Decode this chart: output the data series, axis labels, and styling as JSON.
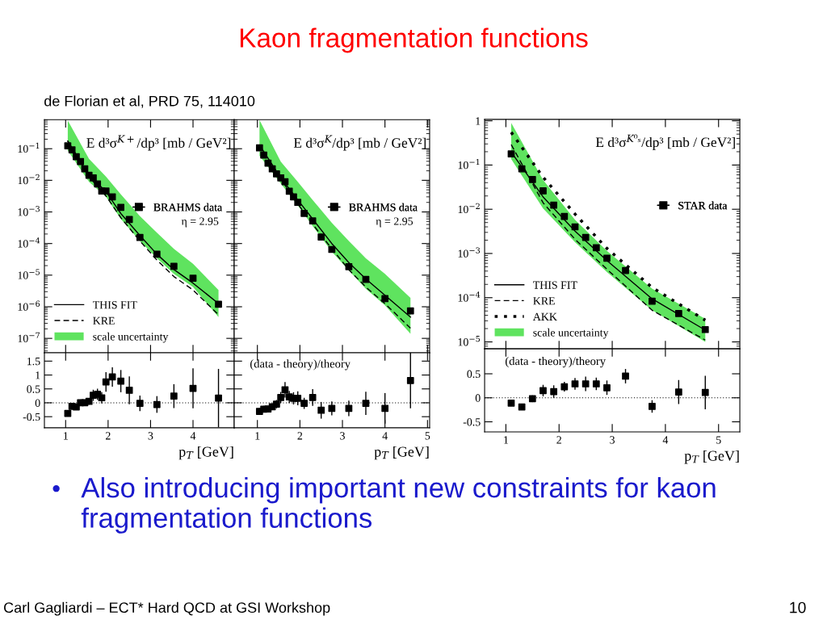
{
  "chart_data": [
    {
      "type": "other",
      "title": "Kaon fragmentation functions",
      "subtitle": "de Florian et al, PRD 75, 114010",
      "annotations": [
        "Also introducing important new constraints for kaon fragmentation functions",
        "Carl Gagliardi – ECT* Hard QCD at GSI Workshop",
        "10"
      ]
    },
    {
      "type": "line",
      "log": "y",
      "xlim": [
        0.5,
        4.97
      ],
      "xticks": [
        1,
        2,
        3,
        4
      ],
      "ylim": [
        3.5e-08,
        0.83
      ],
      "yticks": [
        {
          "value": 0.1,
          "label": "10$^{−1}$"
        },
        {
          "value": 0.01,
          "label": "10$^{−2}$"
        },
        {
          "value": 0.001,
          "label": "10$^{−3}$"
        },
        {
          "value": 0.0001,
          "label": "10$^{−4}$"
        },
        {
          "value": 1e-05,
          "label": "10$^{−5}$"
        },
        {
          "value": 1e-06,
          "label": "10$^{−6}$"
        },
        {
          "value": 1e-07,
          "label": "10$^{−7}$"
        }
      ],
      "tick_labels": "y",
      "legend": "bottom left",
      "annotations": [
        "E d³σ$^{K+}$/dp³ [mb / GeV²]",
        "η = 2.95",
        "scale uncertainty"
      ],
      "series": [
        {
          "name": "THIS FIT",
          "type": "line",
          "line_style": "solid",
          "color": "#000000",
          "x": [
            1.05,
            1.55,
            1.95,
            2.3,
            2.75,
            3.15,
            3.55,
            4.0,
            4.6
          ],
          "values": [
            0.175,
            0.0145,
            0.0044,
            0.00089,
            0.00018,
            4.6e-05,
            1.5e-05,
            5.6e-06,
            1.26e-06
          ],
          "lower": [
            0.087,
            0.0089,
            0.003,
            0.0006,
            0.00012,
            3.4e-05,
            1.1e-05,
            4.2e-06,
            4.7e-07
          ],
          "upper": [
            0.78,
            0.048,
            0.0132,
            0.0036,
            0.00074,
            0.00022,
            6.8e-05,
            2.3e-05,
            3.4e-06
          ]
        },
        {
          "name": "KRE",
          "type": "line",
          "line_style": "dashed",
          "color": "#000000",
          "x": [
            1.05,
            1.55,
            1.95,
            2.3,
            2.75,
            3.15,
            3.55,
            4.0,
            4.6
          ],
          "values": [
            0.175,
            0.013,
            0.0032,
            0.00066,
            0.00012,
            3e-05,
            9e-06,
            3.4e-06,
            5.6e-07
          ]
        },
        {
          "name": "BRAHMS data",
          "type": "scatter",
          "marker": "square",
          "color": "#000000",
          "x": [
            1.05,
            1.15,
            1.25,
            1.35,
            1.45,
            1.55,
            1.65,
            1.75,
            1.85,
            1.95,
            2.1,
            2.3,
            2.5,
            2.75,
            3.15,
            3.55,
            4.0,
            4.6
          ],
          "values": [
            0.124,
            0.092,
            0.056,
            0.039,
            0.023,
            0.0145,
            0.012,
            0.0077,
            0.0046,
            0.0046,
            0.003,
            0.0014,
            0.00058,
            0.000155,
            4.6e-05,
            1.9e-05,
            8e-06,
            1.2e-06
          ]
        }
      ]
    },
    {
      "type": "line",
      "log": "y",
      "xlim": [
        0.455,
        5.05
      ],
      "xticks": [
        1,
        2,
        3,
        4,
        5
      ],
      "ylim": [
        3.5e-08,
        0.83
      ],
      "yticks": [
        0.1,
        0.01,
        0.001,
        0.0001,
        1e-05,
        1e-06,
        1e-07
      ],
      "tick_labels": false,
      "legend": "right",
      "annotations": [
        "E d³σ$^{K}$/dp³ [mb / GeV²]",
        "η = 2.95"
      ],
      "series": [
        {
          "type": "line",
          "line_style": "solid",
          "color": "#000000",
          "x": [
            1.05,
            1.55,
            1.95,
            2.3,
            2.75,
            3.15,
            3.55,
            4.0,
            4.6
          ],
          "values": [
            0.13,
            0.012,
            0.0024,
            0.0006,
            0.0001,
            2.5e-05,
            7.6e-06,
            2.3e-06,
            4.7e-07
          ],
          "lower": [
            0.06,
            0.008,
            0.0016,
            0.00036,
            5.5e-05,
            1.4e-05,
            3.7e-06,
            1.1e-06,
            1.4e-07
          ],
          "upper": [
            0.8,
            0.039,
            0.0089,
            0.0024,
            0.00045,
            0.00012,
            3.4e-05,
            1.1e-05,
            1.9e-06
          ]
        },
        {
          "type": "line",
          "line_style": "dashed",
          "color": "#000000",
          "x": [
            1.05,
            1.55,
            1.95,
            2.3,
            2.75,
            3.15,
            3.55,
            4.0,
            4.6
          ],
          "values": [
            0.13,
            0.011,
            0.0018,
            0.00041,
            6.8e-05,
            1.5e-05,
            4.2e-06,
            1.26e-06,
            2.1e-07
          ]
        },
        {
          "name": "BRAHMS data",
          "type": "scatter",
          "marker": "square",
          "color": "#000000",
          "x": [
            1.05,
            1.15,
            1.25,
            1.35,
            1.45,
            1.55,
            1.65,
            1.75,
            1.85,
            1.95,
            2.1,
            2.3,
            2.5,
            2.75,
            3.15,
            3.55,
            4.0,
            4.6
          ],
          "values": [
            0.106,
            0.063,
            0.035,
            0.023,
            0.016,
            0.012,
            0.009,
            0.0045,
            0.003,
            0.002,
            0.0009,
            0.00052,
            0.00016,
            6.5e-05,
            1.85e-05,
            7.3e-06,
            1.8e-06,
            7.4e-07
          ]
        }
      ]
    },
    {
      "type": "line",
      "log": "y",
      "xlim": [
        0.6,
        5.4
      ],
      "xticks": [
        1,
        2,
        3,
        4,
        5
      ],
      "ylim": [
        7e-06,
        1.08
      ],
      "yticks": [
        1,
        {
          "value": 0.1,
          "label": "10$^{−1}$"
        },
        {
          "value": 0.01,
          "label": "10$^{−2}$"
        },
        {
          "value": 0.001,
          "label": "10$^{−3}$"
        },
        {
          "value": 0.0001,
          "label": "10$^{−4}$"
        },
        {
          "value": 1e-05,
          "label": "10$^{−5}$"
        }
      ],
      "tick_labels": "y",
      "legend": "bottom left",
      "annotations": [
        "E d³σ$^{K⁰ₛ}$/dp³ [mb / GeV²]",
        "scale uncertainty"
      ],
      "series": [
        {
          "name": "THIS FIT",
          "type": "line",
          "line_style": "solid",
          "color": "#000000",
          "x": [
            1.1,
            1.7,
            2.3,
            2.9,
            3.75,
            4.75
          ],
          "values": [
            0.197,
            0.019,
            0.0032,
            0.00069,
            9.4e-05,
            1.85e-05
          ],
          "lower": [
            0.137,
            0.0104,
            0.0018,
            0.00038,
            5.2e-05,
            1e-05
          ],
          "upper": [
            0.9,
            0.046,
            0.0058,
            0.00115,
            0.00016,
            3.3e-05
          ]
        },
        {
          "name": "KRE",
          "type": "line",
          "line_style": "dashed",
          "color": "#000000",
          "x": [
            1.1,
            1.7,
            2.3,
            2.9,
            3.75,
            4.75
          ],
          "values": [
            0.29,
            0.014,
            0.0021,
            0.00044,
            5.2e-05,
            1.1e-05
          ]
        },
        {
          "name": "AKK",
          "type": "line",
          "line_style": "dotted",
          "color": "#000000",
          "x": [
            1.1,
            1.7,
            2.3,
            2.9,
            3.75,
            4.75
          ],
          "values": [
            0.55,
            0.053,
            0.0078,
            0.0013,
            0.00017,
            3.1e-05
          ]
        },
        {
          "name": "STAR data",
          "type": "scatter",
          "marker": "square",
          "color": "#000000",
          "x": [
            1.1,
            1.3,
            1.5,
            1.7,
            1.9,
            2.1,
            2.3,
            2.5,
            2.7,
            2.9,
            3.25,
            3.75,
            4.25,
            4.75
          ],
          "values": [
            0.179,
            0.082,
            0.047,
            0.026,
            0.0124,
            0.0069,
            0.004,
            0.0023,
            0.00135,
            0.00078,
            0.00041,
            8.3e-05,
            4.4e-05,
            1.9e-05
          ]
        }
      ]
    },
    {
      "type": "scatter",
      "xlim": [
        0.5,
        4.97
      ],
      "xticks": [
        1,
        2,
        3,
        4
      ],
      "ylim": [
        -0.9,
        1.8
      ],
      "yticks": [
        -0.5,
        0,
        0.5,
        1,
        1.5
      ],
      "xlabel": "p$_{T}$ [GeV]",
      "marker": "square",
      "ref_lines": [
        {
          "axis": "y",
          "value": 0,
          "line_style": "dotted",
          "color": "#000000"
        }
      ],
      "series": [
        {
          "type": "scatter",
          "color": "#000000",
          "x": [
            1.05,
            1.15,
            1.25,
            1.35,
            1.45,
            1.55,
            1.65,
            1.75,
            1.85,
            1.95,
            2.1,
            2.3,
            2.5,
            2.75,
            3.15,
            3.55,
            4.0,
            4.6
          ],
          "values": [
            -0.38,
            -0.13,
            -0.15,
            0.0,
            0.0,
            0.05,
            0.27,
            0.31,
            0.18,
            0.75,
            0.93,
            0.78,
            0.45,
            -0.02,
            -0.06,
            0.24,
            0.52,
            0.17
          ],
          "errors": [
            0.1,
            0.1,
            0.1,
            0.12,
            0.12,
            0.12,
            0.2,
            0.2,
            0.2,
            0.35,
            0.35,
            0.4,
            0.5,
            0.28,
            0.3,
            0.43,
            0.72,
            1.05
          ]
        }
      ]
    },
    {
      "type": "scatter",
      "xlim": [
        0.455,
        5.05
      ],
      "xticks": [
        1,
        2,
        3,
        4,
        5
      ],
      "ylim": [
        -0.9,
        1.8
      ],
      "yticks": [
        -0.5,
        0,
        0.5,
        1,
        1.5
      ],
      "xlabel": "p$_{T}$ [GeV]",
      "marker": "square",
      "tick_labels": "x",
      "annotations": [
        "(data - theory)/theory"
      ],
      "ref_lines": [
        {
          "axis": "y",
          "value": 0,
          "line_style": "dotted",
          "color": "#000000"
        }
      ],
      "series": [
        {
          "type": "scatter",
          "color": "#000000",
          "x": [
            1.05,
            1.15,
            1.25,
            1.35,
            1.45,
            1.55,
            1.65,
            1.75,
            1.85,
            1.95,
            2.1,
            2.3,
            2.5,
            2.75,
            3.15,
            3.55,
            4.0,
            4.6
          ],
          "values": [
            -0.31,
            -0.23,
            -0.22,
            -0.14,
            -0.05,
            0.19,
            0.47,
            0.21,
            0.16,
            0.16,
            -0.02,
            0.19,
            -0.27,
            -0.2,
            -0.2,
            -0.02,
            -0.2,
            0.8
          ],
          "errors": [
            0.12,
            0.12,
            0.12,
            0.12,
            0.15,
            0.2,
            0.28,
            0.22,
            0.22,
            0.25,
            0.2,
            0.3,
            0.3,
            0.25,
            0.28,
            0.42,
            0.55,
            1.0
          ]
        }
      ]
    },
    {
      "type": "scatter",
      "xlim": [
        0.6,
        5.4
      ],
      "xticks": [
        1,
        2,
        3,
        4,
        5
      ],
      "ylim": [
        -0.71,
        1.02
      ],
      "yticks": [
        -0.5,
        0,
        0.5
      ],
      "xlabel": "p$_{T}$ [GeV]",
      "marker": "square",
      "annotations": [
        "(data - theory)/theory"
      ],
      "ref_lines": [
        {
          "axis": "y",
          "value": 0,
          "line_style": "dotted",
          "color": "#000000"
        }
      ],
      "series": [
        {
          "type": "scatter",
          "color": "#000000",
          "x": [
            1.1,
            1.3,
            1.5,
            1.7,
            1.9,
            2.1,
            2.3,
            2.5,
            2.7,
            2.9,
            3.25,
            3.75,
            4.25,
            4.75
          ],
          "values": [
            -0.11,
            -0.19,
            -0.02,
            0.15,
            0.13,
            0.23,
            0.29,
            0.29,
            0.29,
            0.21,
            0.45,
            -0.18,
            0.12,
            0.11
          ],
          "errors": [
            0.04,
            0.04,
            0.07,
            0.12,
            0.13,
            0.1,
            0.12,
            0.15,
            0.13,
            0.15,
            0.15,
            0.13,
            0.25,
            0.35
          ]
        }
      ]
    }
  ]
}
